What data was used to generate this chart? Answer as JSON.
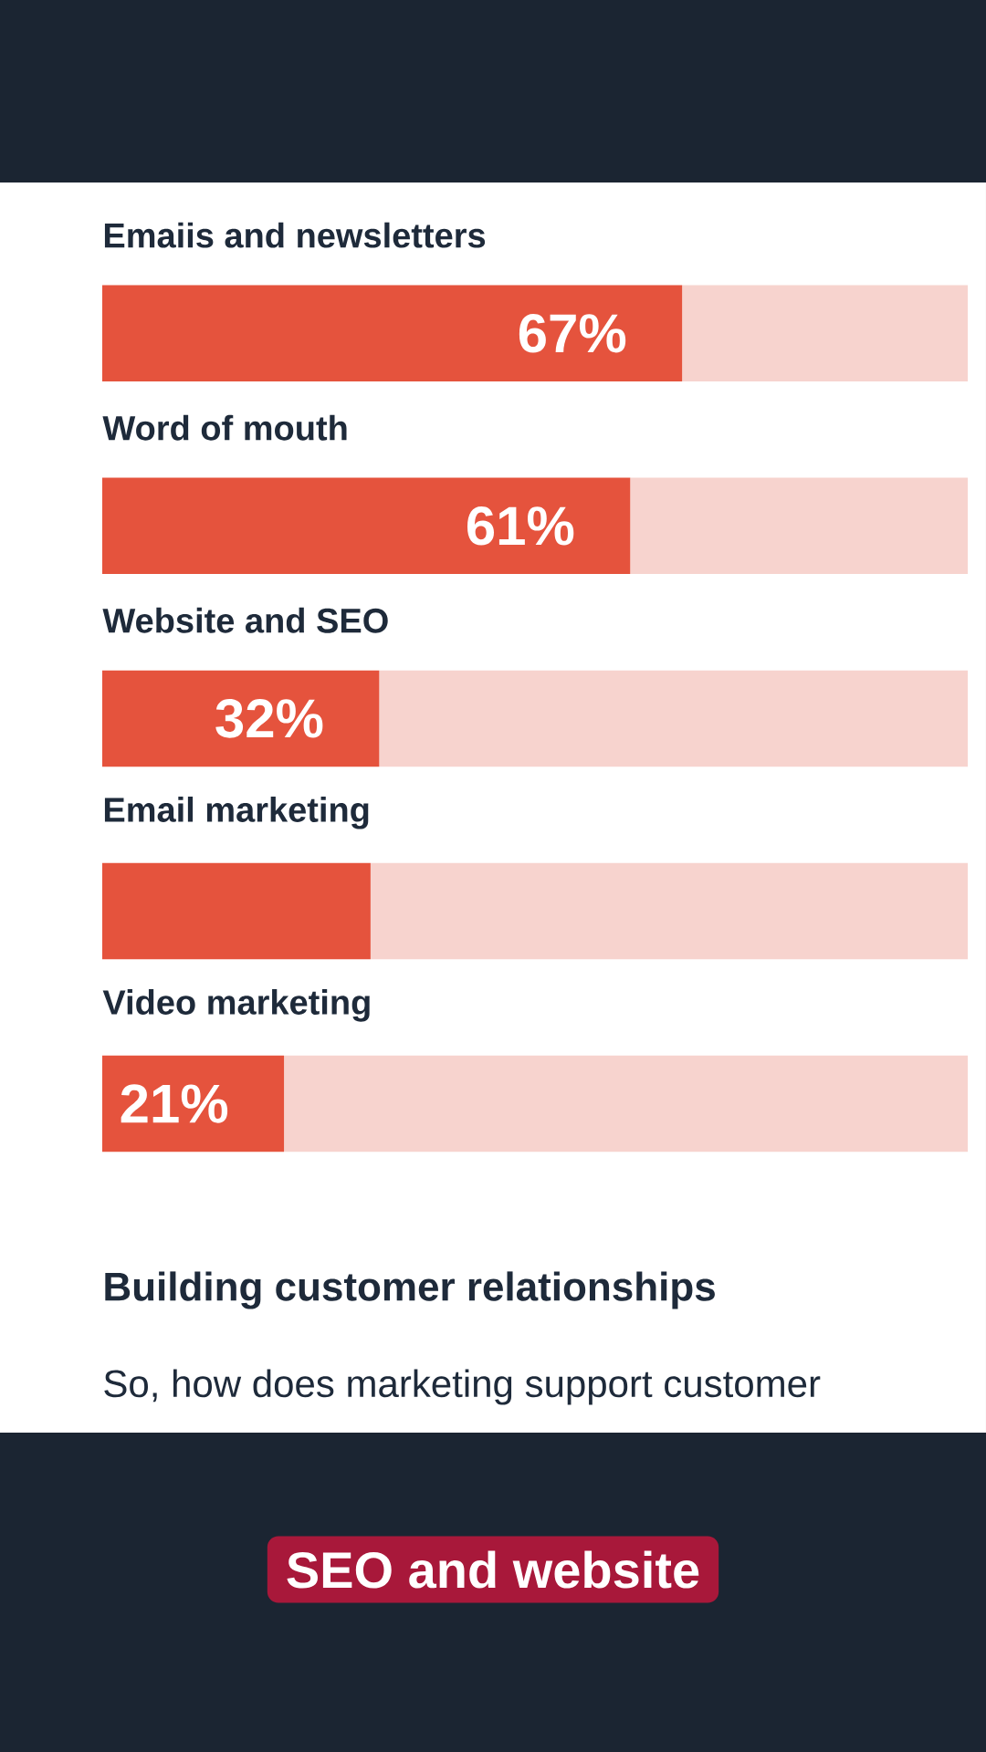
{
  "chart_data": {
    "type": "bar",
    "orientation": "horizontal",
    "categories": [
      "Emaiis and newsletters",
      "Word of mouth",
      "Website and SEO",
      "Email marketing",
      "Video marketing"
    ],
    "stacked": true,
    "series": [
      {
        "color": "#e5533d",
        "values": [
          67,
          61,
          32,
          31,
          21
        ],
        "value_labels": [
          "67%",
          "61%",
          "32%",
          null,
          "21%"
        ]
      },
      {
        "color": "#f7d3ce",
        "values": [
          33,
          39,
          68,
          69,
          79
        ]
      }
    ],
    "xlim": [
      0,
      100
    ],
    "annotations": [
      "Building customer relationships",
      "So, how does marketing support customer",
      "SEO and website"
    ]
  }
}
